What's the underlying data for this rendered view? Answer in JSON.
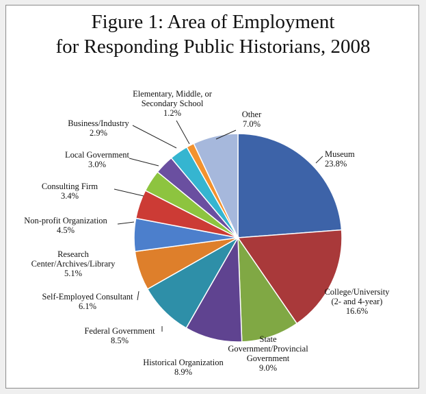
{
  "chart_data": {
    "type": "pie",
    "title_line1": "Figure 1: Area of Employment",
    "title_line2": "for Responding Public Historians, 2008",
    "unit": "%",
    "slices": [
      {
        "label": [
          "Museum"
        ],
        "value": 23.8,
        "value_text": "23.8%",
        "color": "#3d63a8"
      },
      {
        "label": [
          "College/University",
          "(2- and 4-year)"
        ],
        "value": 16.6,
        "value_text": "16.6%",
        "color": "#a9393a"
      },
      {
        "label": [
          "State",
          "Government/Provincial",
          "Government"
        ],
        "value": 9.0,
        "value_text": "9.0%",
        "color": "#80a844"
      },
      {
        "label": [
          "Historical Organization"
        ],
        "value": 8.9,
        "value_text": "8.9%",
        "color": "#5f4390"
      },
      {
        "label": [
          "Federal Government"
        ],
        "value": 8.5,
        "value_text": "8.5%",
        "color": "#2e8fa8"
      },
      {
        "label": [
          "Self-Employed Consultant"
        ],
        "value": 6.1,
        "value_text": "6.1%",
        "color": "#de7f2b"
      },
      {
        "label": [
          "Research",
          "Center/Archives/Library"
        ],
        "value": 5.1,
        "value_text": "5.1%",
        "color": "#4c7fcc"
      },
      {
        "label": [
          "Non-profit Organization"
        ],
        "value": 4.5,
        "value_text": "4.5%",
        "color": "#cc3b35"
      },
      {
        "label": [
          "Consulting Firm"
        ],
        "value": 3.4,
        "value_text": "3.4%",
        "color": "#8dc43f"
      },
      {
        "label": [
          "Local Government"
        ],
        "value": 3.0,
        "value_text": "3.0%",
        "color": "#6a4fa0"
      },
      {
        "label": [
          "Business/Industry"
        ],
        "value": 2.9,
        "value_text": "2.9%",
        "color": "#35b5d0"
      },
      {
        "label": [
          "Elementary, Middle, or",
          "Secondary School"
        ],
        "value": 1.2,
        "value_text": "1.2%",
        "color": "#f3922e"
      },
      {
        "label": [
          "Other"
        ],
        "value": 7.0,
        "value_text": "7.0%",
        "color": "#a6b8dc"
      }
    ]
  }
}
